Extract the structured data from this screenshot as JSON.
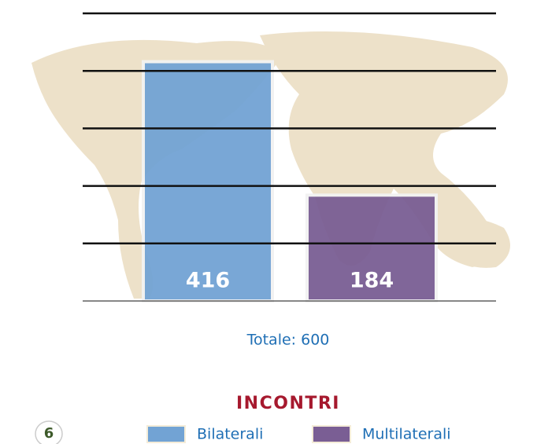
{
  "chart_data": {
    "type": "bar",
    "title": "INCONTRI",
    "subtitle": "Totale: 600",
    "page_number": "6",
    "categories": [
      "Bilaterali",
      "Multilaterali"
    ],
    "series": [
      {
        "name": "Bilaterali",
        "color": "#72a3d4"
      },
      {
        "name": "Multilaterali",
        "color": "#7a5e94"
      }
    ],
    "values": [
      416,
      184
    ],
    "ylim": [
      0,
      500
    ],
    "yticks": [
      0,
      100,
      200,
      300,
      400,
      500
    ],
    "grid": true
  }
}
